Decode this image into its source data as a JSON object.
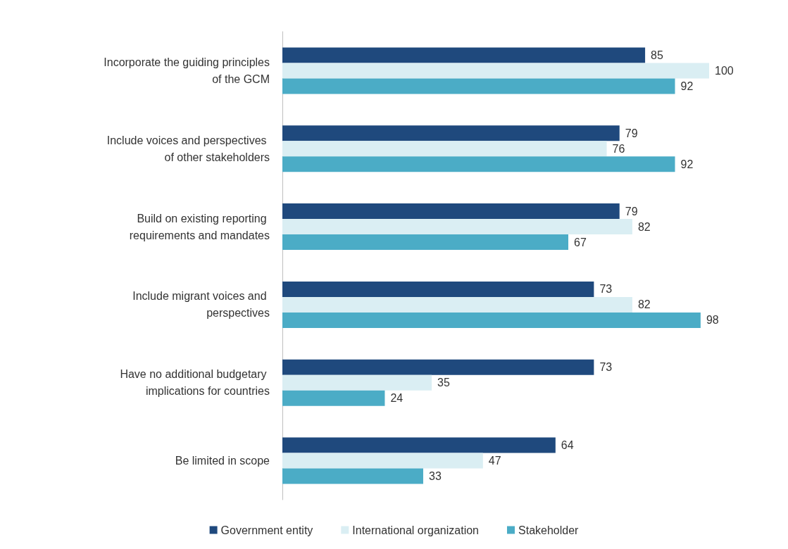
{
  "chart_data": {
    "type": "bar",
    "orientation": "horizontal",
    "categories": [
      "Incorporate the guiding principles of the GCM",
      "Include voices and perspectives of other stakeholders",
      "Build on existing reporting requirements and mandates",
      "Include migrant voices and perspectives",
      "Have no additional budgetary implications for countries",
      "Be limited in scope"
    ],
    "series": [
      {
        "name": "Government entity",
        "color": "#1f497d",
        "values": [
          85,
          79,
          79,
          73,
          73,
          64
        ]
      },
      {
        "name": "International organization",
        "color": "#daeef3",
        "values": [
          100,
          76,
          82,
          82,
          35,
          47
        ]
      },
      {
        "name": "Stakeholder",
        "color": "#4bacc6",
        "values": [
          92,
          92,
          67,
          98,
          24,
          33
        ]
      }
    ],
    "data_labels": true,
    "legend": "bottom",
    "tick_labels": "y"
  }
}
